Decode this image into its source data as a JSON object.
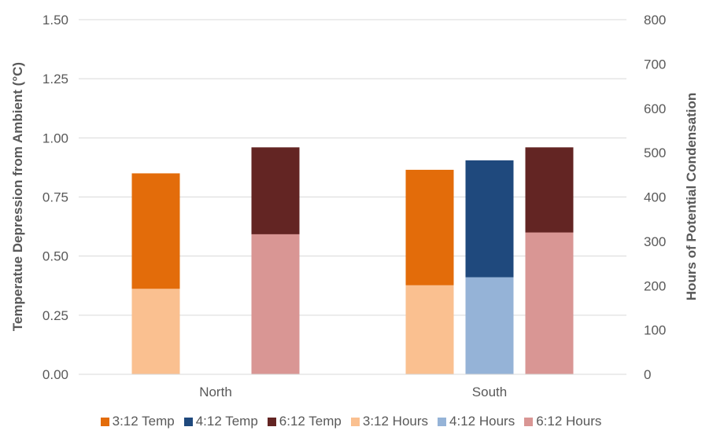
{
  "chart_data": {
    "type": "bar",
    "categories": [
      "North",
      "South"
    ],
    "ylabel": "Temperatue Depression from Ambient (°C)",
    "y2label": "Hours of Potential Condensation",
    "ylim": [
      0,
      1.5
    ],
    "y2lim": [
      0,
      800
    ],
    "yticks": [
      "0.00",
      "0.25",
      "0.50",
      "0.75",
      "1.00",
      "1.25",
      "1.50"
    ],
    "y2ticks": [
      "0",
      "100",
      "200",
      "300",
      "400",
      "500",
      "600",
      "700",
      "800"
    ],
    "grid": true,
    "legend_position": "bottom",
    "groups": [
      "3:12",
      "4:12",
      "6:12"
    ],
    "series": [
      {
        "name": "3:12 Temp",
        "axis": "left",
        "color": "#E36C0A",
        "values": [
          0.85,
          0.865
        ]
      },
      {
        "name": "4:12 Temp",
        "axis": "left",
        "color": "#1F497D",
        "values": [
          null,
          0.905
        ]
      },
      {
        "name": "6:12 Temp",
        "axis": "left",
        "color": "#632523",
        "values": [
          0.96,
          0.96
        ]
      },
      {
        "name": "3:12 Hours",
        "axis": "right",
        "color": "#FAC090",
        "values": [
          193,
          201
        ]
      },
      {
        "name": "4:12 Hours",
        "axis": "right",
        "color": "#95B3D7",
        "values": [
          null,
          219
        ]
      },
      {
        "name": "6:12 Hours",
        "axis": "right",
        "color": "#D99694",
        "values": [
          316,
          320
        ]
      }
    ]
  }
}
